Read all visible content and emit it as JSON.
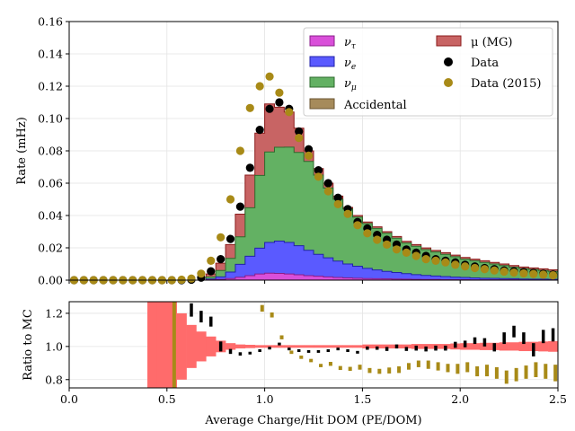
{
  "chart_data": [
    {
      "type": "area",
      "panel": "main",
      "ylabel": "Rate (mHz)",
      "ylim": [
        0,
        0.16
      ],
      "xlim": [
        0,
        2.5
      ],
      "yticks": [
        "0.00",
        "0.02",
        "0.04",
        "0.06",
        "0.08",
        "0.10",
        "0.12",
        "0.14",
        "0.16"
      ],
      "grid": true,
      "stacked": true,
      "bin_edges": [
        0.0,
        0.05,
        0.1,
        0.15,
        0.2,
        0.25,
        0.3,
        0.35,
        0.4,
        0.45,
        0.5,
        0.55,
        0.6,
        0.65,
        0.7,
        0.75,
        0.8,
        0.85,
        0.9,
        0.95,
        1.0,
        1.05,
        1.1,
        1.15,
        1.2,
        1.25,
        1.3,
        1.35,
        1.4,
        1.45,
        1.5,
        1.55,
        1.6,
        1.65,
        1.7,
        1.75,
        1.8,
        1.85,
        1.9,
        1.95,
        2.0,
        2.05,
        2.1,
        2.15,
        2.2,
        2.25,
        2.3,
        2.35,
        2.4,
        2.45,
        2.5
      ],
      "series": [
        {
          "name": "Accidental",
          "color": "#a68b5b",
          "values": [
            0,
            0,
            0,
            0,
            0,
            0,
            0,
            0,
            0,
            0,
            0,
            0,
            0,
            0,
            0,
            0,
            0,
            0,
            0,
            0,
            0,
            0,
            0,
            0,
            0,
            0,
            0,
            0,
            0,
            0,
            0,
            0,
            0,
            0,
            0,
            0,
            0,
            0,
            0,
            0,
            0,
            0,
            0,
            0,
            0,
            0,
            0,
            0,
            0,
            0
          ]
        },
        {
          "name": "ν_τ",
          "color": "#d94fd9",
          "values": [
            0,
            0,
            0,
            0,
            0,
            0,
            0,
            0,
            0,
            0,
            0,
            0,
            0,
            0,
            0.0002,
            0.0005,
            0.001,
            0.0018,
            0.0028,
            0.0038,
            0.0043,
            0.0042,
            0.0038,
            0.0033,
            0.0028,
            0.0024,
            0.002,
            0.0017,
            0.0014,
            0.0012,
            0.001,
            0.0009,
            0.0008,
            0.0007,
            0.0006,
            0.0005,
            0.0004,
            0.0004,
            0.0003,
            0.0003,
            0.0003,
            0.0002,
            0.0002,
            0.0002,
            0.0002,
            0.0002,
            0.0001,
            0.0001,
            0.0001,
            0.0001
          ]
        },
        {
          "name": "ν_e",
          "color": "#5a5aff",
          "values": [
            0,
            0,
            0,
            0,
            0,
            0,
            0,
            0,
            0,
            0,
            0,
            0,
            0,
            0,
            0.0005,
            0.0015,
            0.004,
            0.008,
            0.012,
            0.016,
            0.019,
            0.02,
            0.0195,
            0.018,
            0.0157,
            0.0136,
            0.0118,
            0.0101,
            0.0086,
            0.0074,
            0.0063,
            0.0054,
            0.0046,
            0.004,
            0.0034,
            0.0029,
            0.0025,
            0.0022,
            0.0019,
            0.0016,
            0.0014,
            0.0012,
            0.001,
            0.0009,
            0.0008,
            0.0007,
            0.0006,
            0.0005,
            0.0005,
            0.0004
          ]
        },
        {
          "name": "ν_μ",
          "color": "#63b163",
          "values": [
            0,
            0,
            0,
            0,
            0,
            0,
            0,
            0,
            0,
            0,
            0,
            0,
            0,
            0,
            0.0013,
            0.004,
            0.0085,
            0.017,
            0.03,
            0.045,
            0.056,
            0.058,
            0.059,
            0.0577,
            0.055,
            0.049,
            0.0432,
            0.0382,
            0.034,
            0.0304,
            0.0277,
            0.0257,
            0.0236,
            0.0213,
            0.019,
            0.0176,
            0.016,
            0.0148,
            0.0138,
            0.0126,
            0.0113,
            0.0106,
            0.0098,
            0.0089,
            0.008,
            0.0071,
            0.0064,
            0.006,
            0.0054,
            0.0049
          ]
        },
        {
          "name": "μ (MG)",
          "color": "#c86464",
          "values": [
            0,
            0,
            0,
            0,
            0,
            0,
            0,
            0,
            0,
            0,
            0,
            0,
            0,
            0,
            0.0018,
            0.0045,
            0.0085,
            0.014,
            0.0202,
            0.0262,
            0.0297,
            0.0248,
            0.0217,
            0.015,
            0.0065,
            0.004,
            0.003,
            0.002,
            0.001,
            0.001,
            0.001,
            0.001,
            0.001,
            0.001,
            0.001,
            0.001,
            0.001,
            0.001,
            0.001,
            0.001,
            0.001,
            0.001,
            0.001,
            0.001,
            0.001,
            0.001,
            0.001,
            0.001,
            0.001,
            0.001
          ]
        }
      ],
      "points": [
        {
          "name": "Data",
          "color": "#000000",
          "x": [
            0.025,
            0.075,
            0.125,
            0.175,
            0.225,
            0.275,
            0.325,
            0.375,
            0.425,
            0.475,
            0.525,
            0.575,
            0.625,
            0.675,
            0.725,
            0.775,
            0.825,
            0.875,
            0.925,
            0.975,
            1.025,
            1.075,
            1.125,
            1.175,
            1.225,
            1.275,
            1.325,
            1.375,
            1.425,
            1.475,
            1.525,
            1.575,
            1.625,
            1.675,
            1.725,
            1.775,
            1.825,
            1.875,
            1.925,
            1.975,
            2.025,
            2.075,
            2.125,
            2.175,
            2.225,
            2.275,
            2.325,
            2.375,
            2.425,
            2.475
          ],
          "y": [
            0,
            0,
            0,
            0,
            0,
            0,
            0,
            0,
            0,
            0,
            0,
            0,
            0.0003,
            0.0015,
            0.0055,
            0.013,
            0.0255,
            0.0455,
            0.0695,
            0.093,
            0.106,
            0.11,
            0.106,
            0.092,
            0.081,
            0.068,
            0.06,
            0.051,
            0.044,
            0.036,
            0.032,
            0.028,
            0.025,
            0.022,
            0.019,
            0.017,
            0.015,
            0.013,
            0.012,
            0.011,
            0.0095,
            0.0085,
            0.0075,
            0.0068,
            0.006,
            0.0055,
            0.005,
            0.0045,
            0.004,
            0.0035
          ]
        },
        {
          "name": "Data (2015)",
          "color": "#a88a17",
          "x": [
            0.025,
            0.075,
            0.125,
            0.175,
            0.225,
            0.275,
            0.325,
            0.375,
            0.425,
            0.475,
            0.525,
            0.575,
            0.625,
            0.675,
            0.725,
            0.775,
            0.825,
            0.875,
            0.925,
            0.975,
            1.025,
            1.075,
            1.125,
            1.175,
            1.225,
            1.275,
            1.325,
            1.375,
            1.425,
            1.475,
            1.525,
            1.575,
            1.625,
            1.675,
            1.725,
            1.775,
            1.825,
            1.875,
            1.925,
            1.975,
            2.025,
            2.075,
            2.125,
            2.175,
            2.225,
            2.275,
            2.325,
            2.375,
            2.425,
            2.475
          ],
          "y": [
            0,
            0,
            0,
            0,
            0,
            0,
            0,
            0,
            0,
            0,
            0,
            0.0003,
            0.001,
            0.004,
            0.012,
            0.0265,
            0.05,
            0.08,
            0.1065,
            0.12,
            0.126,
            0.116,
            0.104,
            0.088,
            0.077,
            0.064,
            0.055,
            0.047,
            0.041,
            0.034,
            0.029,
            0.025,
            0.022,
            0.019,
            0.017,
            0.015,
            0.013,
            0.012,
            0.011,
            0.0095,
            0.0085,
            0.0075,
            0.0068,
            0.006,
            0.0053,
            0.0047,
            0.0042,
            0.0038,
            0.0034,
            0.003
          ]
        }
      ],
      "legend": {
        "placement": "top-right",
        "columns": 2,
        "entries": [
          {
            "label": "ν_τ",
            "kind": "patch",
            "color": "#d94fd9"
          },
          {
            "label": "μ (MG)",
            "kind": "patch",
            "color": "#c86464"
          },
          {
            "label": "ν_e",
            "kind": "patch",
            "color": "#5a5aff"
          },
          {
            "label": "Data",
            "kind": "marker",
            "color": "#000000"
          },
          {
            "label": "ν_μ",
            "kind": "patch",
            "color": "#63b163"
          },
          {
            "label": "Data (2015)",
            "kind": "marker",
            "color": "#a88a17"
          },
          {
            "label": "Accidental",
            "kind": "patch",
            "color": "#a68b5b"
          }
        ]
      }
    },
    {
      "type": "bar",
      "panel": "ratio",
      "ylabel": "Ratio to MC",
      "xlabel": "Average Charge/Hit DOM (PE/DOM)",
      "ylim": [
        0.75,
        1.27
      ],
      "xlim": [
        0,
        2.5
      ],
      "yticks": [
        "0.8",
        "1.0",
        "1.2"
      ],
      "xticks": [
        "0.0",
        "0.5",
        "1.0",
        "1.5",
        "2.0",
        "2.5"
      ],
      "grid": true,
      "mc_band": {
        "name": "MC uncertainty",
        "color": "#ff6b6b",
        "x": [
          0.425,
          0.475,
          0.525,
          0.575,
          0.625,
          0.675,
          0.725,
          0.775,
          0.825,
          0.875,
          0.925,
          0.975,
          1.025,
          1.075,
          1.125,
          1.175,
          1.225,
          1.275,
          1.325,
          1.375,
          1.425,
          1.475,
          1.525,
          1.575,
          1.625,
          1.675,
          1.725,
          1.775,
          1.825,
          1.875,
          1.925,
          1.975,
          2.025,
          2.075,
          2.125,
          2.175,
          2.225,
          2.275,
          2.325,
          2.375,
          2.425,
          2.475
        ],
        "half_width": [
          0.5,
          0.5,
          0.5,
          0.2,
          0.13,
          0.09,
          0.06,
          0.035,
          0.02,
          0.012,
          0.01,
          0.008,
          0.008,
          0.008,
          0.008,
          0.008,
          0.008,
          0.008,
          0.008,
          0.008,
          0.008,
          0.008,
          0.012,
          0.012,
          0.012,
          0.012,
          0.012,
          0.015,
          0.015,
          0.015,
          0.015,
          0.018,
          0.02,
          0.02,
          0.022,
          0.022,
          0.025,
          0.025,
          0.028,
          0.028,
          0.03,
          0.032
        ]
      },
      "series": [
        {
          "name": "Data",
          "color": "#000000",
          "x": [
            0.625,
            0.675,
            0.725,
            0.775,
            0.825,
            0.875,
            0.925,
            0.975,
            1.025,
            1.075,
            1.125,
            1.175,
            1.225,
            1.275,
            1.325,
            1.375,
            1.425,
            1.475,
            1.525,
            1.575,
            1.625,
            1.675,
            1.725,
            1.775,
            1.825,
            1.875,
            1.925,
            1.975,
            2.025,
            2.075,
            2.125,
            2.175,
            2.225,
            2.275,
            2.325,
            2.375,
            2.425,
            2.475
          ],
          "y": [
            1.22,
            1.18,
            1.15,
            1.0,
            0.97,
            0.955,
            0.96,
            0.975,
            0.99,
            1.015,
            0.985,
            0.975,
            0.97,
            0.97,
            0.975,
            0.985,
            0.975,
            0.965,
            0.99,
            0.99,
            0.985,
            1.0,
            0.985,
            0.99,
            0.985,
            0.99,
            0.99,
            1.01,
            1.015,
            1.035,
            1.025,
            0.995,
            1.05,
            1.09,
            1.05,
            0.98,
            1.06,
            1.07
          ],
          "err": [
            0.04,
            0.035,
            0.03,
            0.03,
            0.015,
            0.01,
            0.008,
            0.008,
            0.008,
            0.008,
            0.008,
            0.008,
            0.008,
            0.008,
            0.008,
            0.008,
            0.008,
            0.008,
            0.01,
            0.01,
            0.012,
            0.012,
            0.012,
            0.015,
            0.015,
            0.015,
            0.015,
            0.018,
            0.02,
            0.02,
            0.025,
            0.025,
            0.035,
            0.035,
            0.035,
            0.04,
            0.04,
            0.04
          ]
        },
        {
          "name": "Data (2015)",
          "color": "#a88a17",
          "x": [
            0.525,
            0.975,
            1.025,
            1.075,
            1.125,
            1.175,
            1.225,
            1.275,
            1.325,
            1.375,
            1.425,
            1.475,
            1.525,
            1.575,
            1.625,
            1.675,
            1.725,
            1.775,
            1.825,
            1.875,
            1.925,
            1.975,
            2.025,
            2.075,
            2.125,
            2.175,
            2.225,
            2.275,
            2.325,
            2.375,
            2.425,
            2.475
          ],
          "y": [
            1.0,
            1.23,
            1.19,
            1.055,
            0.965,
            0.935,
            0.915,
            0.885,
            0.895,
            0.87,
            0.865,
            0.875,
            0.855,
            0.85,
            0.855,
            0.86,
            0.88,
            0.895,
            0.89,
            0.88,
            0.87,
            0.865,
            0.875,
            0.85,
            0.855,
            0.84,
            0.815,
            0.83,
            0.845,
            0.86,
            0.85,
            0.84
          ],
          "err": [
            0.5,
            0.02,
            0.015,
            0.012,
            0.01,
            0.01,
            0.01,
            0.01,
            0.012,
            0.012,
            0.012,
            0.015,
            0.015,
            0.015,
            0.018,
            0.02,
            0.02,
            0.02,
            0.025,
            0.025,
            0.025,
            0.03,
            0.03,
            0.03,
            0.035,
            0.035,
            0.04,
            0.04,
            0.04,
            0.045,
            0.045,
            0.05
          ]
        }
      ]
    }
  ]
}
